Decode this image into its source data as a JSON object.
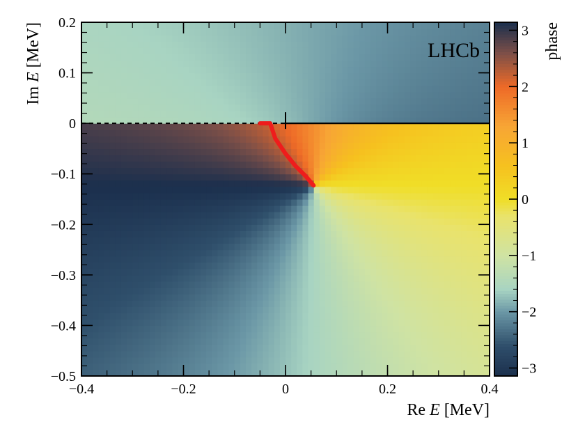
{
  "chart_data": {
    "type": "heatmap",
    "brand_label": "LHCb",
    "xlabel_prefix": "Re ",
    "xlabel_var": "E",
    "xlabel_unit": " [MeV]",
    "ylabel_prefix": "Im ",
    "ylabel_var": "E",
    "ylabel_unit": " [MeV]",
    "xlim": [
      -0.4,
      0.4
    ],
    "ylim": [
      -0.5,
      0.2
    ],
    "x_ticks": [
      "−0.4",
      "−0.2",
      "0",
      "0.2",
      "0.4"
    ],
    "x_tick_values": [
      -0.4,
      -0.2,
      0,
      0.2,
      0.4
    ],
    "y_ticks": [
      "−0.5",
      "−0.4",
      "−0.3",
      "−0.2",
      "−0.1",
      "0",
      "0.1",
      "0.2"
    ],
    "y_tick_values": [
      -0.5,
      -0.4,
      -0.3,
      -0.2,
      -0.1,
      0,
      0.1,
      0.2
    ],
    "colorbar": {
      "label": "phase",
      "range": [
        -3.1416,
        3.1416
      ],
      "ticks": [
        "−3",
        "−2",
        "−1",
        "0",
        "1",
        "2",
        "3"
      ],
      "tick_values": [
        -3,
        -2,
        -1,
        0,
        1,
        2,
        3
      ],
      "colormap": [
        {
          "v": -3.1416,
          "color": "#1b2f4d"
        },
        {
          "v": -2.6,
          "color": "#2f4f6b"
        },
        {
          "v": -2.0,
          "color": "#6b97a6"
        },
        {
          "v": -1.6,
          "color": "#a8d4c2"
        },
        {
          "v": -1.0,
          "color": "#cfe3a3"
        },
        {
          "v": -0.3,
          "color": "#e9e36c"
        },
        {
          "v": 0.0,
          "color": "#f0de27"
        },
        {
          "v": 0.6,
          "color": "#f6c11f"
        },
        {
          "v": 1.3,
          "color": "#f7a535"
        },
        {
          "v": 2.0,
          "color": "#ee6a27"
        },
        {
          "v": 2.6,
          "color": "#7c4f48"
        },
        {
          "v": 3.1416,
          "color": "#1b2f4d"
        }
      ]
    },
    "pole": {
      "re": 0.055,
      "im": -0.123
    },
    "branch_cut_left": {
      "from": [
        -0.4,
        0
      ],
      "to": [
        0.0,
        0
      ],
      "style": "dashed"
    },
    "branch_cut_right": {
      "from": [
        0.0,
        0
      ],
      "to": [
        0.4,
        0
      ],
      "style": "solid"
    },
    "threshold_marker": {
      "re": 0.0,
      "im": 0.0
    },
    "red_trajectory": {
      "color": "#ee1c1c",
      "points": [
        [
          -0.05,
          0.0
        ],
        [
          -0.03,
          0.0
        ],
        [
          -0.02,
          -0.03
        ],
        [
          0.0,
          -0.06
        ],
        [
          0.02,
          -0.085
        ],
        [
          0.04,
          -0.105
        ],
        [
          0.055,
          -0.123
        ]
      ]
    }
  }
}
